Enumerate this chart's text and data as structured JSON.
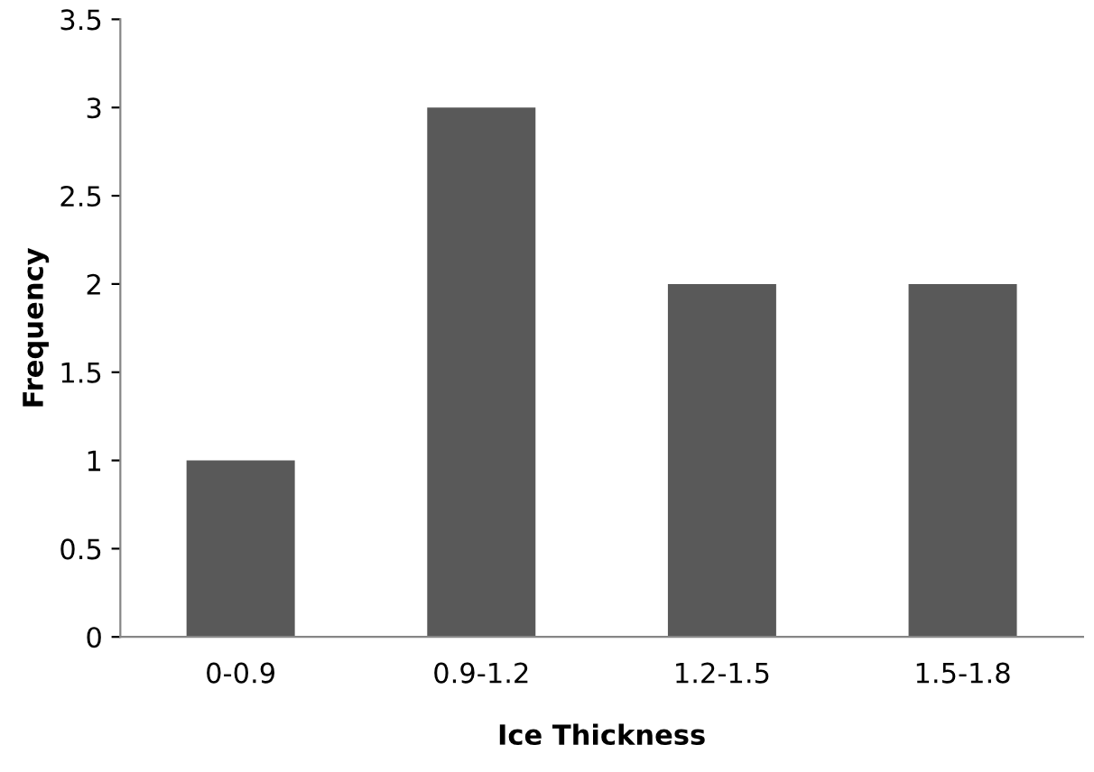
{
  "chart_data": {
    "type": "bar",
    "xlabel": "Ice Thickness",
    "ylabel": "Frequency",
    "categories": [
      "0-0.9",
      "0.9-1.2",
      "1.2-1.5",
      "1.5-1.8"
    ],
    "values": [
      1,
      3,
      2,
      2
    ],
    "color": "#595959",
    "ylim": [
      0,
      3.5
    ],
    "yticks": [
      0,
      0.5,
      1,
      1.5,
      2,
      2.5,
      3,
      3.5
    ],
    "grid": false,
    "legend": false
  }
}
